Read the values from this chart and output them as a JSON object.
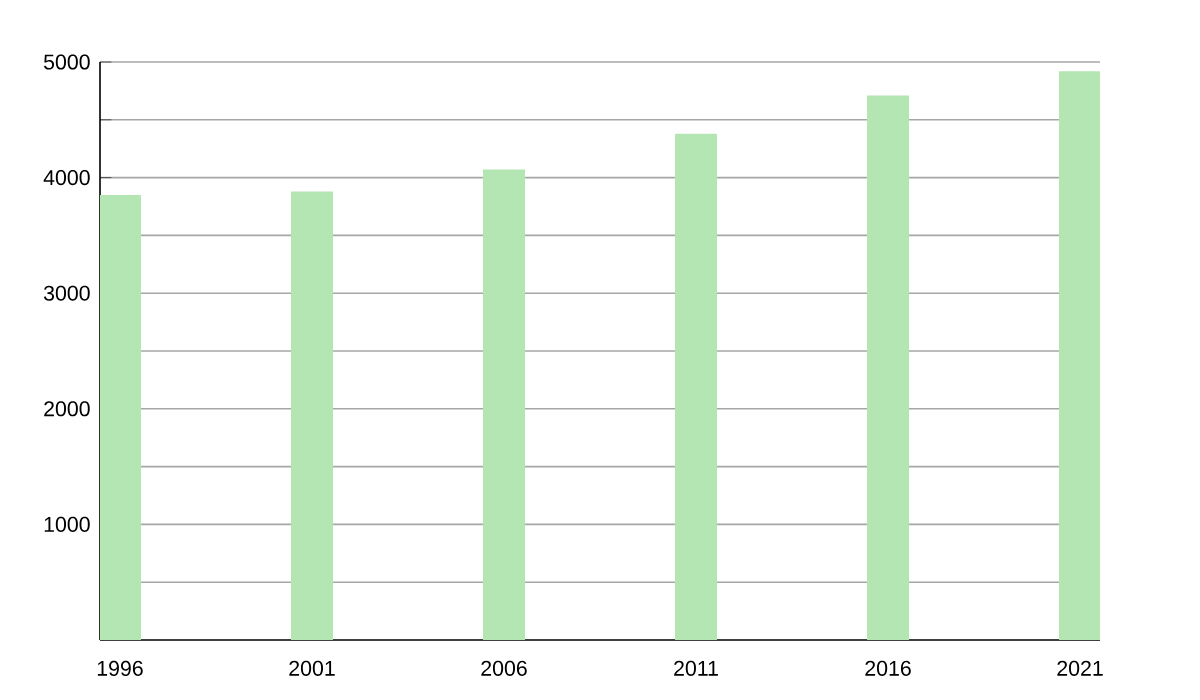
{
  "chart_data": {
    "type": "bar",
    "categories": [
      "1996",
      "2001",
      "2006",
      "2011",
      "2016",
      "2021"
    ],
    "values": [
      3850,
      3880,
      4070,
      4380,
      4710,
      4920
    ],
    "color": "#b3e6b3",
    "ylim": [
      0,
      5000
    ],
    "yticks": [
      {
        "value": 500,
        "label": null
      },
      1000,
      {
        "value": 1500,
        "label": null
      },
      2000,
      {
        "value": 2500,
        "label": null
      },
      3000,
      {
        "value": 3500,
        "label": null
      },
      4000,
      {
        "value": 4500,
        "label": null
      },
      5000
    ],
    "grid": "y"
  }
}
